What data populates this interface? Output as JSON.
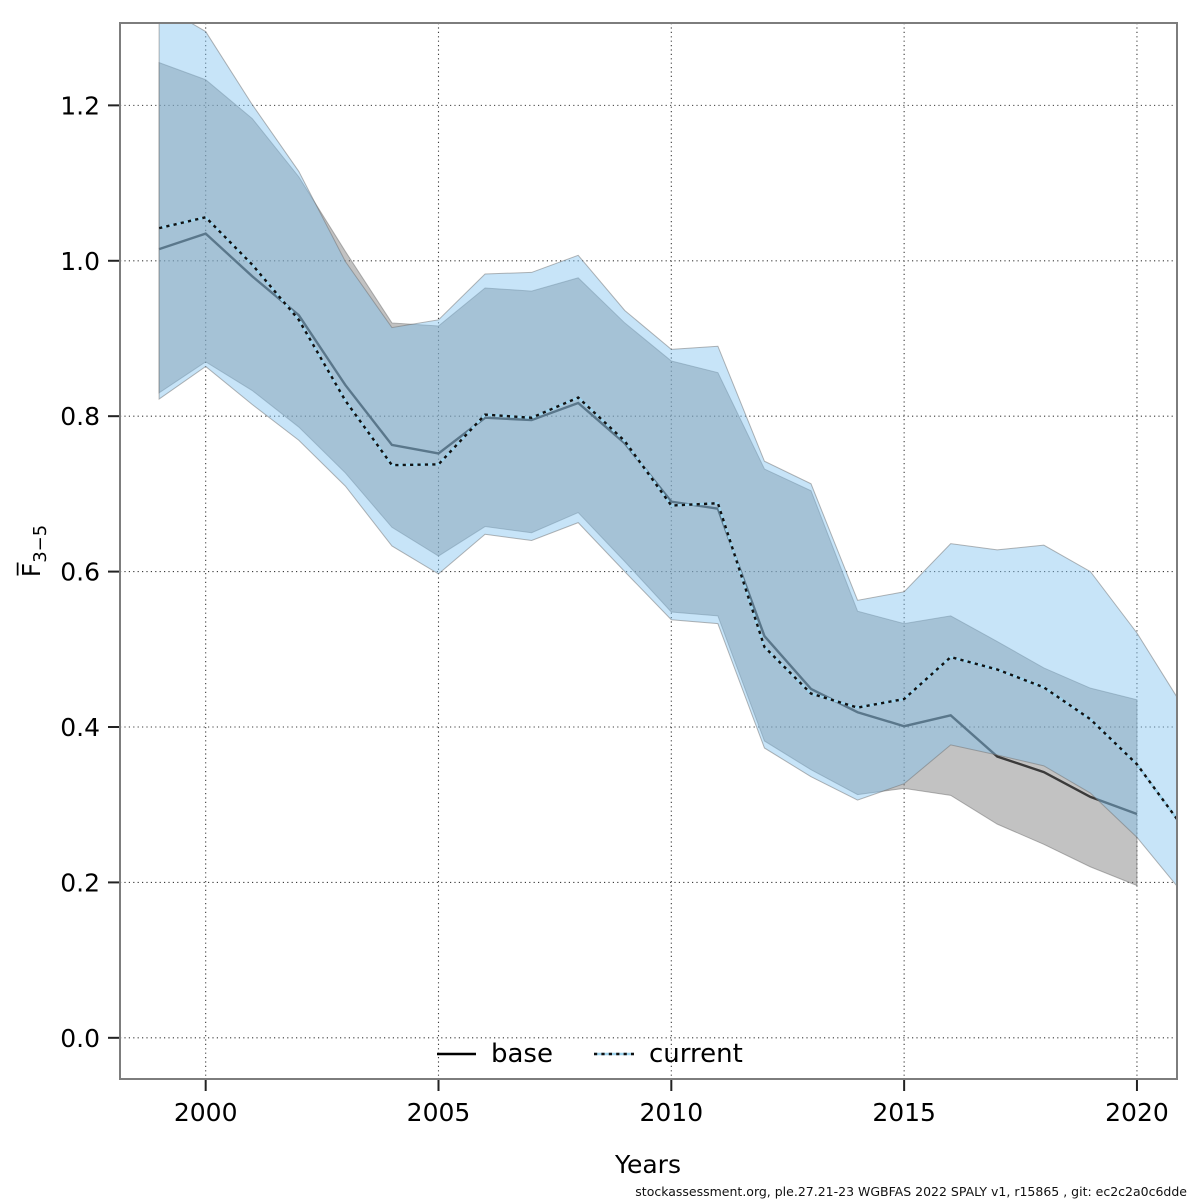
{
  "figure": {
    "xlabel": "Years",
    "ylabel_main": "F̅",
    "ylabel_sub": "3−5",
    "caption": "stockassessment.org, ple.27.21-23 WGBFAS 2022 SPALY v1, r15865 , git: ec2c2a0c6dde"
  },
  "chart_data": {
    "type": "line",
    "title": "",
    "xlabel": "Years",
    "ylabel": "Fbar(3-5)",
    "grid": "dotted, both axes",
    "legend_position": "bottom-center-inside",
    "xlim": [
      1998.16,
      2020.86
    ],
    "ylim": [
      -0.053,
      1.306
    ],
    "x_ticks": [
      {
        "v": 2000,
        "label": "2000"
      },
      {
        "v": 2005,
        "label": "2005"
      },
      {
        "v": 2010,
        "label": "2010"
      },
      {
        "v": 2015,
        "label": "2015"
      },
      {
        "v": 2020,
        "label": "2020"
      }
    ],
    "y_ticks": [
      {
        "v": 0.0,
        "label": "0.0"
      },
      {
        "v": 0.2,
        "label": "0.2"
      },
      {
        "v": 0.4,
        "label": "0.4"
      },
      {
        "v": 0.6,
        "label": "0.6"
      },
      {
        "v": 0.8,
        "label": "0.8"
      },
      {
        "v": 1.0,
        "label": "1.0"
      },
      {
        "v": 1.2,
        "label": "1.2"
      }
    ],
    "x": [
      1999,
      2000,
      2001,
      2002,
      2003,
      2004,
      2005,
      2006,
      2007,
      2008,
      2009,
      2010,
      2011,
      2012,
      2013,
      2014,
      2015,
      2016,
      2017,
      2018,
      2019,
      2020,
      2021
    ],
    "series": [
      {
        "name": "base",
        "style": "solid dark line with gray confidence band (ends in 2020)",
        "values": [
          1.015,
          1.035,
          0.98,
          0.93,
          0.84,
          0.763,
          0.752,
          0.798,
          0.795,
          0.817,
          0.765,
          0.69,
          0.681,
          0.517,
          0.449,
          0.419,
          0.401,
          0.415,
          0.362,
          0.342,
          0.31,
          0.288,
          null
        ],
        "ci_lower": [
          0.83,
          0.87,
          0.833,
          0.786,
          0.727,
          0.657,
          0.62,
          0.658,
          0.65,
          0.676,
          0.613,
          0.548,
          0.543,
          0.382,
          0.345,
          0.313,
          0.321,
          0.312,
          0.275,
          0.249,
          0.22,
          0.196,
          null
        ],
        "ci_upper": [
          1.255,
          1.233,
          1.183,
          1.108,
          1.012,
          0.92,
          0.916,
          0.965,
          0.961,
          0.978,
          0.92,
          0.871,
          0.856,
          0.732,
          0.704,
          0.549,
          0.533,
          0.543,
          0.51,
          0.476,
          0.45,
          0.435,
          null
        ]
      },
      {
        "name": "current",
        "style": "black dotted line over light-blue underlay with light-blue confidence band (ends in 2021)",
        "values": [
          1.042,
          1.056,
          0.995,
          0.924,
          0.82,
          0.737,
          0.738,
          0.802,
          0.798,
          0.824,
          0.768,
          0.685,
          0.688,
          0.503,
          0.443,
          0.425,
          0.436,
          0.49,
          0.474,
          0.451,
          0.41,
          0.352,
          0.27
        ],
        "ci_lower": [
          0.822,
          0.864,
          0.815,
          0.769,
          0.71,
          0.633,
          0.597,
          0.648,
          0.64,
          0.663,
          0.6,
          0.538,
          0.533,
          0.373,
          0.336,
          0.306,
          0.327,
          0.377,
          0.364,
          0.35,
          0.315,
          0.258,
          0.185
        ],
        "ci_upper": [
          1.33,
          1.295,
          1.201,
          1.115,
          0.999,
          0.914,
          0.924,
          0.983,
          0.985,
          1.007,
          0.936,
          0.886,
          0.89,
          0.742,
          0.713,
          0.563,
          0.574,
          0.636,
          0.628,
          0.634,
          0.6,
          0.521,
          0.425
        ]
      }
    ],
    "legend": [
      {
        "label": "base"
      },
      {
        "label": "current"
      }
    ],
    "colors": {
      "base_band_fill": "rgba(120,120,120,0.45)",
      "current_band_fill": "rgba(130,195,240,0.45)",
      "band_edge": "rgba(110,110,110,0.5)",
      "base_line": "#3a3a3a",
      "current_line_dash": "#111111",
      "current_line_underlay": "#9fd4ee",
      "grid": "#3c3c3c",
      "box": "#7d7d7d",
      "tick": "#222222"
    }
  }
}
